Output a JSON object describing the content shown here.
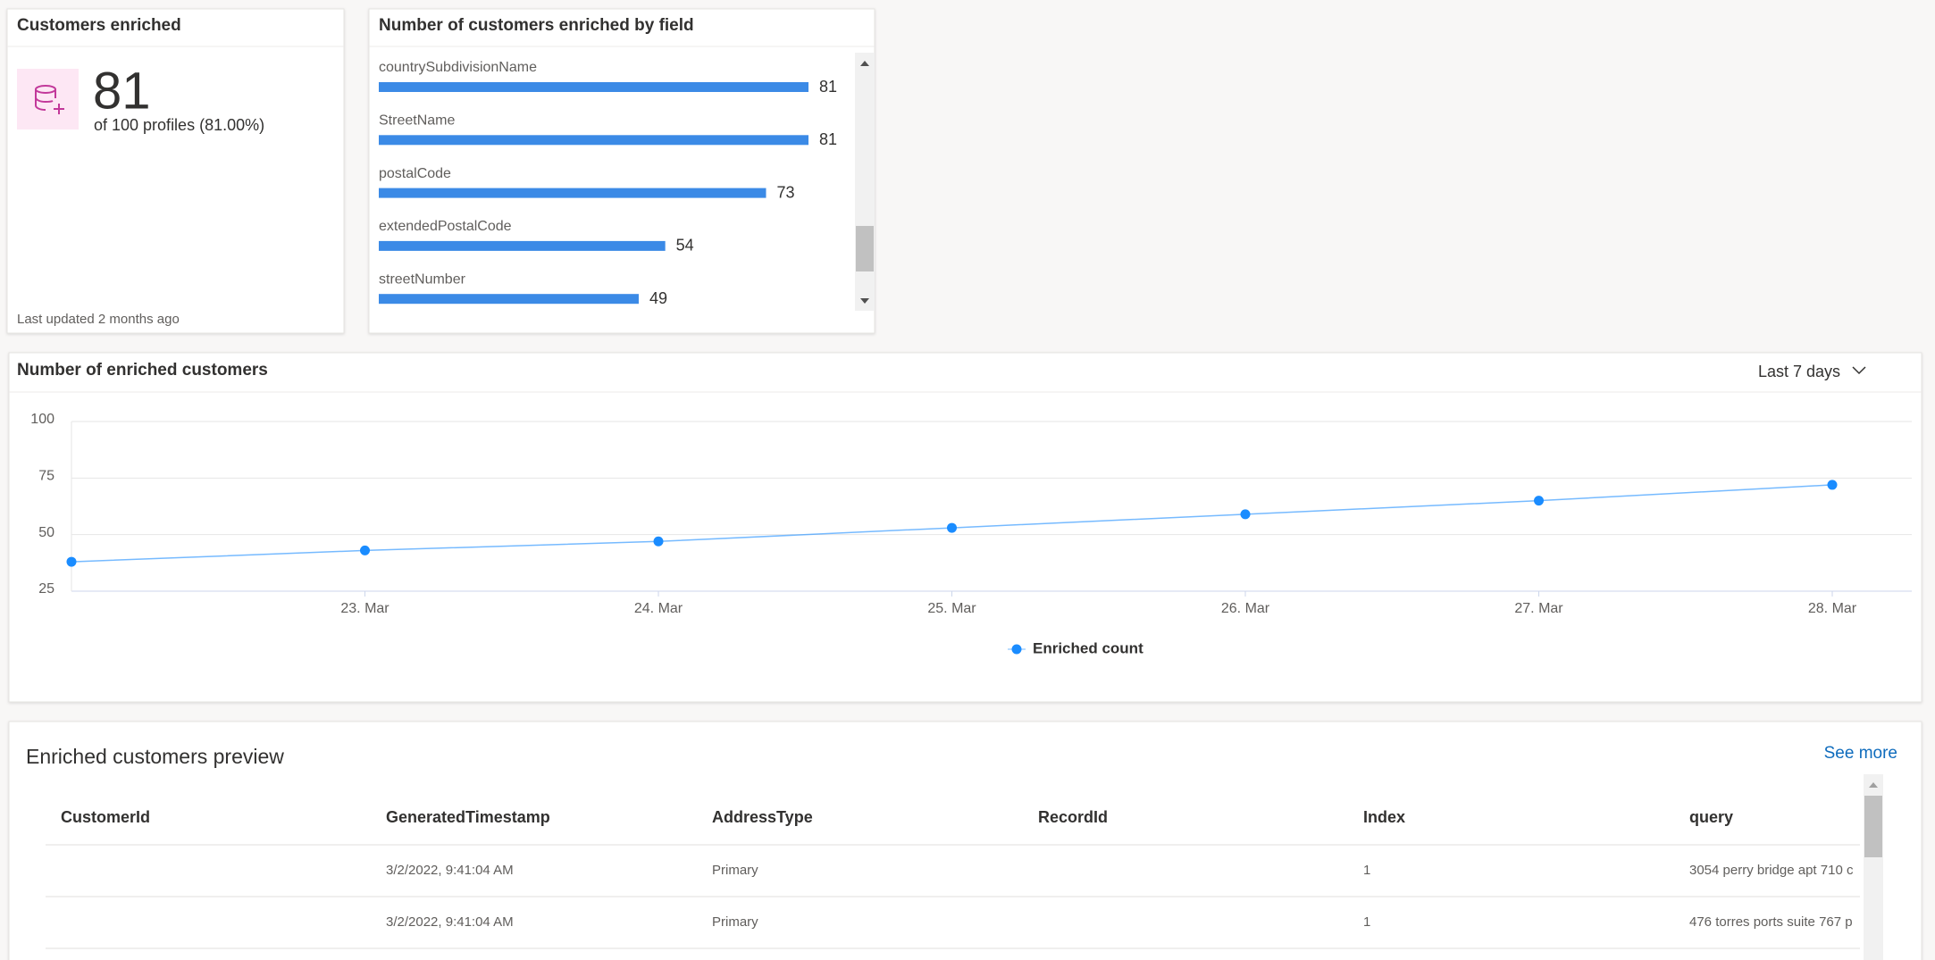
{
  "kpi_card": {
    "title": "Customers enriched",
    "value": 81,
    "subtitle": "of 100 profiles (81.00%)",
    "footer": "Last updated 2 months ago"
  },
  "chart_data": [
    {
      "type": "bar",
      "orientation": "horizontal",
      "title": "Number of customers enriched by field",
      "categories": [
        "countrySubdivisionName",
        "StreetName",
        "postalCode",
        "extendedPostalCode",
        "streetNumber"
      ],
      "values": [
        81,
        81,
        73,
        54,
        49
      ],
      "color": "#3b8ae6"
    },
    {
      "type": "line",
      "title": "Number of enriched customers",
      "dropdown": "Last 7 days",
      "categories": [
        null,
        "23. Mar",
        "24. Mar",
        "25. Mar",
        "26. Mar",
        "27. Mar",
        "28. Mar"
      ],
      "series": [
        {
          "name": "Enriched count",
          "color": "#1a8cff",
          "values": [
            38,
            43,
            47,
            53,
            59,
            65,
            72
          ]
        }
      ],
      "ylim": [
        25,
        100
      ],
      "yticks": [
        25,
        50,
        75,
        100
      ],
      "grid": true
    }
  ],
  "table": {
    "title": "Enriched customers preview",
    "link": "See more",
    "columns": [
      "CustomerId",
      "GeneratedTimestamp",
      "AddressType",
      "RecordId",
      "Index",
      "query"
    ],
    "rows": [
      [
        null,
        "3/2/2022, 9:41:04 AM",
        "Primary",
        null,
        1,
        "3054 perry bridge apt 710 c"
      ],
      [
        null,
        "3/2/2022, 9:41:04 AM",
        "Primary",
        null,
        1,
        "476 torres ports suite 767 p"
      ]
    ]
  }
}
